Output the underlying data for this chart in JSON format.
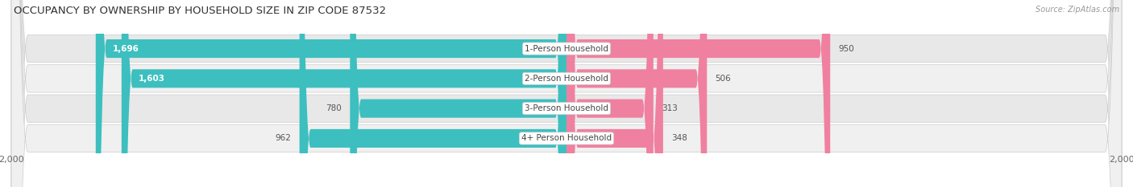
{
  "title": "OCCUPANCY BY OWNERSHIP BY HOUSEHOLD SIZE IN ZIP CODE 87532",
  "source": "Source: ZipAtlas.com",
  "categories": [
    "1-Person Household",
    "2-Person Household",
    "3-Person Household",
    "4+ Person Household"
  ],
  "owner_values": [
    1696,
    1603,
    780,
    962
  ],
  "renter_values": [
    950,
    506,
    313,
    348
  ],
  "max_scale": 2000,
  "owner_color": "#3DBFBF",
  "renter_color": "#F080A0",
  "row_bg_color": "#e8e8e8",
  "row_alt_bg_color": "#f0f0f0",
  "title_fontsize": 9.5,
  "label_fontsize": 7.5,
  "value_fontsize": 7.5,
  "tick_fontsize": 8,
  "legend_fontsize": 8,
  "source_fontsize": 7,
  "background_color": "#ffffff"
}
